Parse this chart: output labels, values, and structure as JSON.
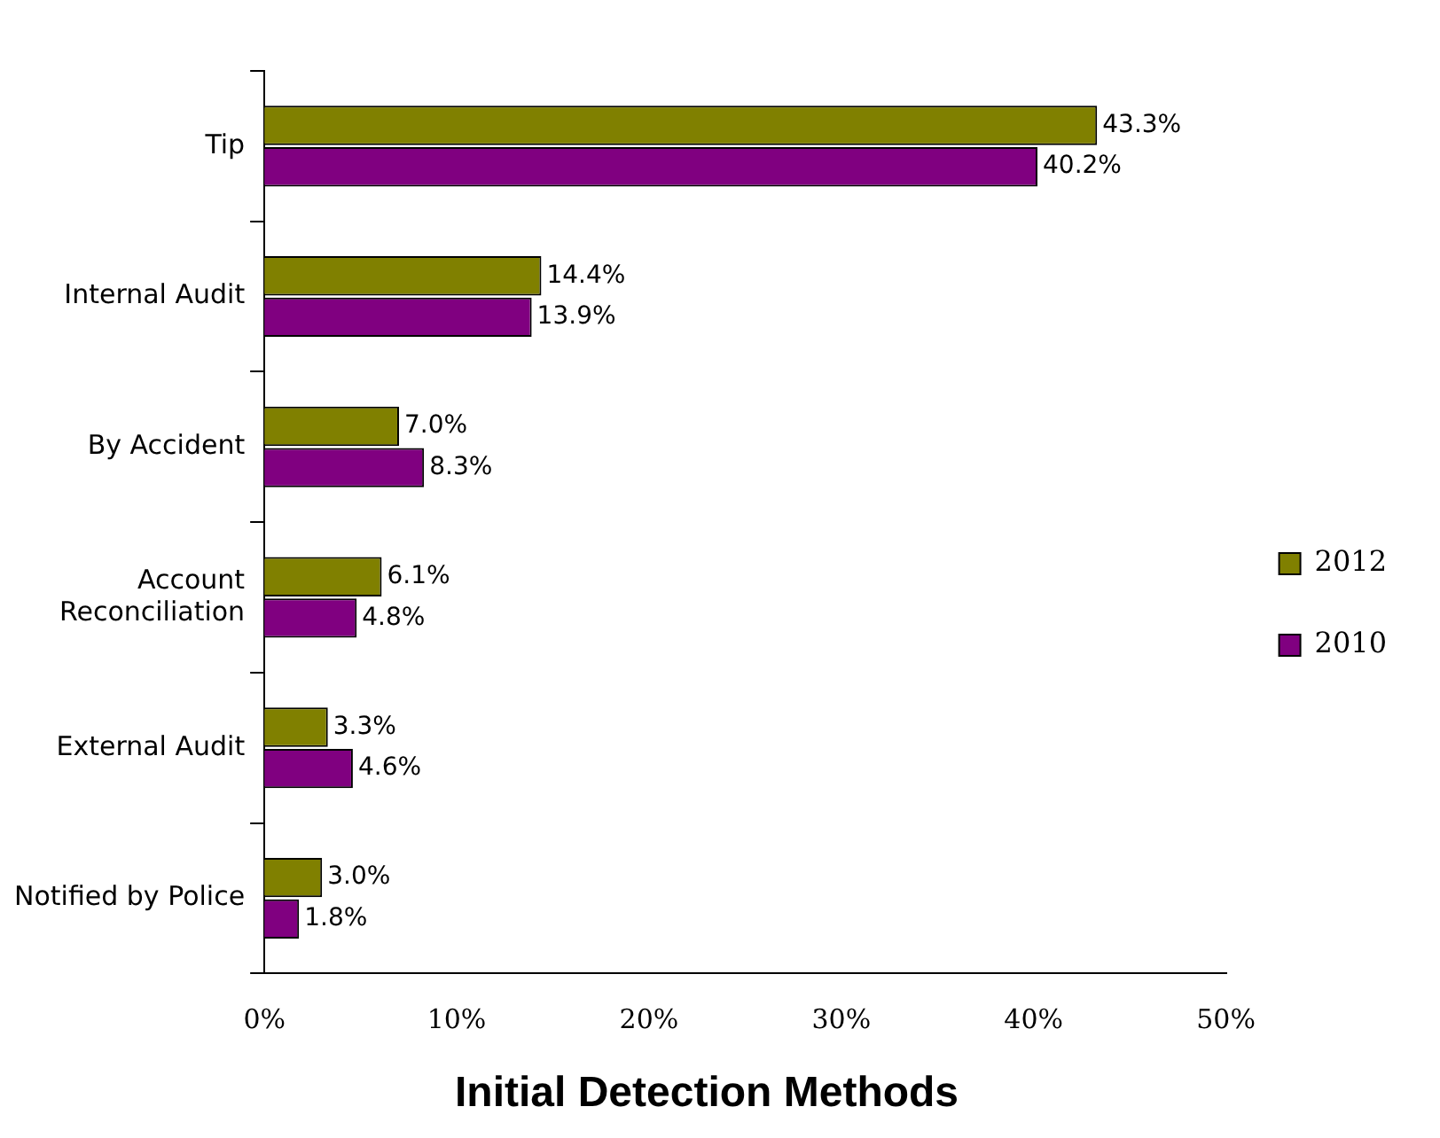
{
  "chart_data": {
    "type": "bar",
    "orientation": "horizontal",
    "title": "Initial Detection Methods",
    "categories": [
      "Tip",
      "Internal Audit",
      "By Accident",
      "Account Reconciliation",
      "External Audit",
      "Notified by Police"
    ],
    "series": [
      {
        "name": "2012",
        "color": "#808000",
        "values": [
          43.3,
          14.4,
          7.0,
          6.1,
          3.3,
          3.0
        ],
        "value_labels": [
          "43.3%",
          "14.4%",
          "7.0%",
          "6.1%",
          "3.3%",
          "3.0%"
        ]
      },
      {
        "name": "2010",
        "color": "#800080",
        "values": [
          40.2,
          13.9,
          8.3,
          4.8,
          4.6,
          1.8
        ],
        "value_labels": [
          "40.2%",
          "13.9%",
          "8.3%",
          "4.8%",
          "4.6%",
          "1.8%"
        ]
      }
    ],
    "xlim": [
      0,
      50
    ],
    "xticks": [
      {
        "value": 0,
        "label": "0%"
      },
      {
        "value": 10,
        "label": "10%"
      },
      {
        "value": 20,
        "label": "20%"
      },
      {
        "value": 30,
        "label": "30%"
      },
      {
        "value": 40,
        "label": "40%"
      },
      {
        "value": 50,
        "label": "50%"
      }
    ],
    "grid": false,
    "legend": "right"
  }
}
